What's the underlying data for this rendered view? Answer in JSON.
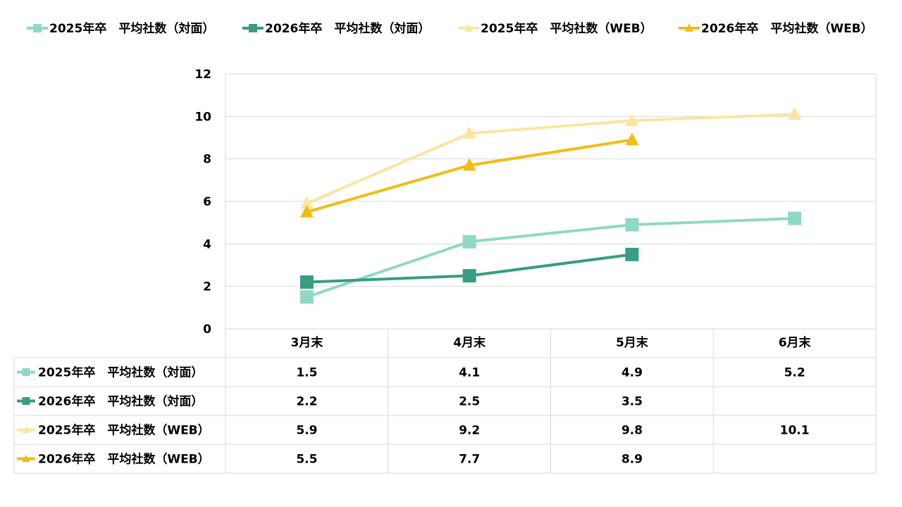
{
  "chart_data": {
    "type": "line",
    "categories": [
      "3月末",
      "4月末",
      "5月末",
      "6月末"
    ],
    "ylim": [
      0,
      12
    ],
    "yticks": [
      0,
      2,
      4,
      6,
      8,
      10,
      12
    ],
    "grid": true,
    "legend_position": "top",
    "data_table": true,
    "series": [
      {
        "name": "2025年卒　平均社数（対面）",
        "values": [
          1.5,
          4.1,
          4.9,
          5.2
        ],
        "color": "#8fd8c4",
        "marker": "square"
      },
      {
        "name": "2026年卒　平均社数（対面）",
        "values": [
          2.2,
          2.5,
          3.5,
          null
        ],
        "color": "#399c84",
        "marker": "square"
      },
      {
        "name": "2025年卒　平均社数（WEB）",
        "values": [
          5.9,
          9.2,
          9.8,
          10.1
        ],
        "color": "#fbe5a0",
        "marker": "triangle"
      },
      {
        "name": "2026年卒　平均社数（WEB）",
        "values": [
          5.5,
          7.7,
          8.9,
          null
        ],
        "color": "#f1bd14",
        "marker": "triangle"
      }
    ]
  }
}
